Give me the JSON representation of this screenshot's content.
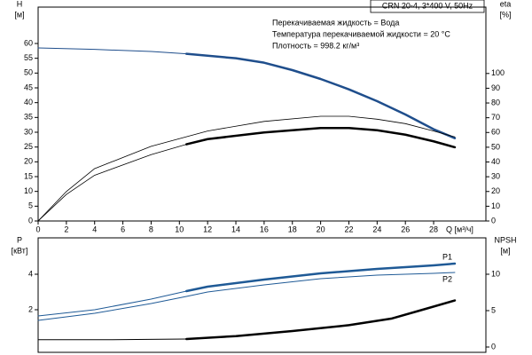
{
  "chart_data": [
    {
      "type": "line",
      "title": "CRN 20-4, 3*400 V, 50Hz",
      "annotations": [
        "Перекачиваемая жидкость = Вода",
        "Температура перекачиваемой жидкости = 20 °C",
        "Плотность = 998.2 кг/м³"
      ],
      "ylabel": [
        "H",
        "[м]"
      ],
      "y2label": [
        "eta",
        "[%]"
      ],
      "xlabel": "Q [м³/ч]",
      "xlim": [
        0,
        31.7
      ],
      "xticks": [
        0,
        2,
        4,
        6,
        8,
        10,
        12,
        14,
        16,
        18,
        20,
        22,
        24,
        26,
        28
      ],
      "ylim": [
        0,
        72.3
      ],
      "yticks": [
        0,
        5,
        10,
        15,
        20,
        25,
        30,
        35,
        40,
        45,
        50,
        55,
        60
      ],
      "y2lim": [
        0,
        145
      ],
      "y2ticks": [
        0,
        10,
        20,
        30,
        40,
        50,
        60,
        70,
        80,
        90,
        100
      ],
      "series": [
        {
          "color": "#1f4e8c",
          "width": 1,
          "x": [
            0,
            4,
            8,
            10.5
          ],
          "values": [
            58.5,
            58,
            57.3,
            56.5
          ]
        },
        {
          "color": "#1f4e8c",
          "width": 2.5,
          "x": [
            10.5,
            14,
            16,
            18,
            20,
            22,
            24,
            26,
            28,
            29.5
          ],
          "values": [
            56.5,
            55,
            53.5,
            51,
            48,
            44.5,
            40.5,
            36,
            31,
            28
          ]
        },
        {
          "color": "#000000",
          "width": 0.8,
          "axis": "y2",
          "x": [
            0,
            2,
            4,
            8,
            12,
            16,
            20,
            22,
            24,
            26,
            28,
            29.5
          ],
          "values": [
            0,
            20,
            35.5,
            50.6,
            61,
            67.5,
            71,
            71,
            69,
            66,
            61,
            57
          ]
        },
        {
          "color": "#000000",
          "width": 0.8,
          "axis": "y2",
          "x": [
            0,
            2,
            4,
            8,
            10.5
          ],
          "values": [
            0,
            18,
            31,
            45,
            52
          ]
        },
        {
          "color": "#000000",
          "width": 2.5,
          "axis": "y2",
          "x": [
            10.5,
            12,
            16,
            20,
            22,
            24,
            26,
            28,
            29.5
          ],
          "values": [
            52,
            55.5,
            60,
            63,
            63,
            61.5,
            58.5,
            54,
            50
          ]
        }
      ]
    },
    {
      "type": "line",
      "ylabel": [
        "P",
        "[кВт]"
      ],
      "y2label": [
        "NPSH",
        "[м]"
      ],
      "xlim": [
        0,
        31.7
      ],
      "ylim": [
        -0.4,
        6.05
      ],
      "yticks": [
        2,
        4
      ],
      "y2lim": [
        -0.73,
        15
      ],
      "y2ticks": [
        0,
        5,
        10
      ],
      "series": [
        {
          "color": "#1f5a96",
          "width": 1,
          "x": [
            0,
            4,
            8,
            10.5
          ],
          "values": [
            1.65,
            2.0,
            2.6,
            3.05
          ]
        },
        {
          "name": "P1",
          "color": "#1f5a96",
          "width": 2.5,
          "x": [
            10.5,
            12,
            16,
            20,
            24,
            28,
            29.5
          ],
          "values": [
            3.05,
            3.3,
            3.7,
            4.05,
            4.3,
            4.5,
            4.6
          ]
        },
        {
          "name": "P2",
          "color": "#1f5a96",
          "width": 1,
          "x": [
            0,
            4,
            8,
            10.5,
            12,
            16,
            20,
            24,
            28,
            29.5
          ],
          "values": [
            1.4,
            1.8,
            2.35,
            2.75,
            3.0,
            3.4,
            3.75,
            3.95,
            4.05,
            4.1
          ]
        },
        {
          "color": "#000000",
          "width": 1,
          "axis": "y2",
          "x": [
            0,
            5,
            10.5
          ],
          "values": [
            1.0,
            1.0,
            1.1
          ]
        },
        {
          "color": "#000000",
          "width": 2.5,
          "axis": "y2",
          "x": [
            10.5,
            14,
            18,
            22,
            25,
            27,
            29.5
          ],
          "values": [
            1.1,
            1.5,
            2.2,
            3.0,
            3.9,
            5.0,
            6.4
          ]
        }
      ]
    }
  ]
}
